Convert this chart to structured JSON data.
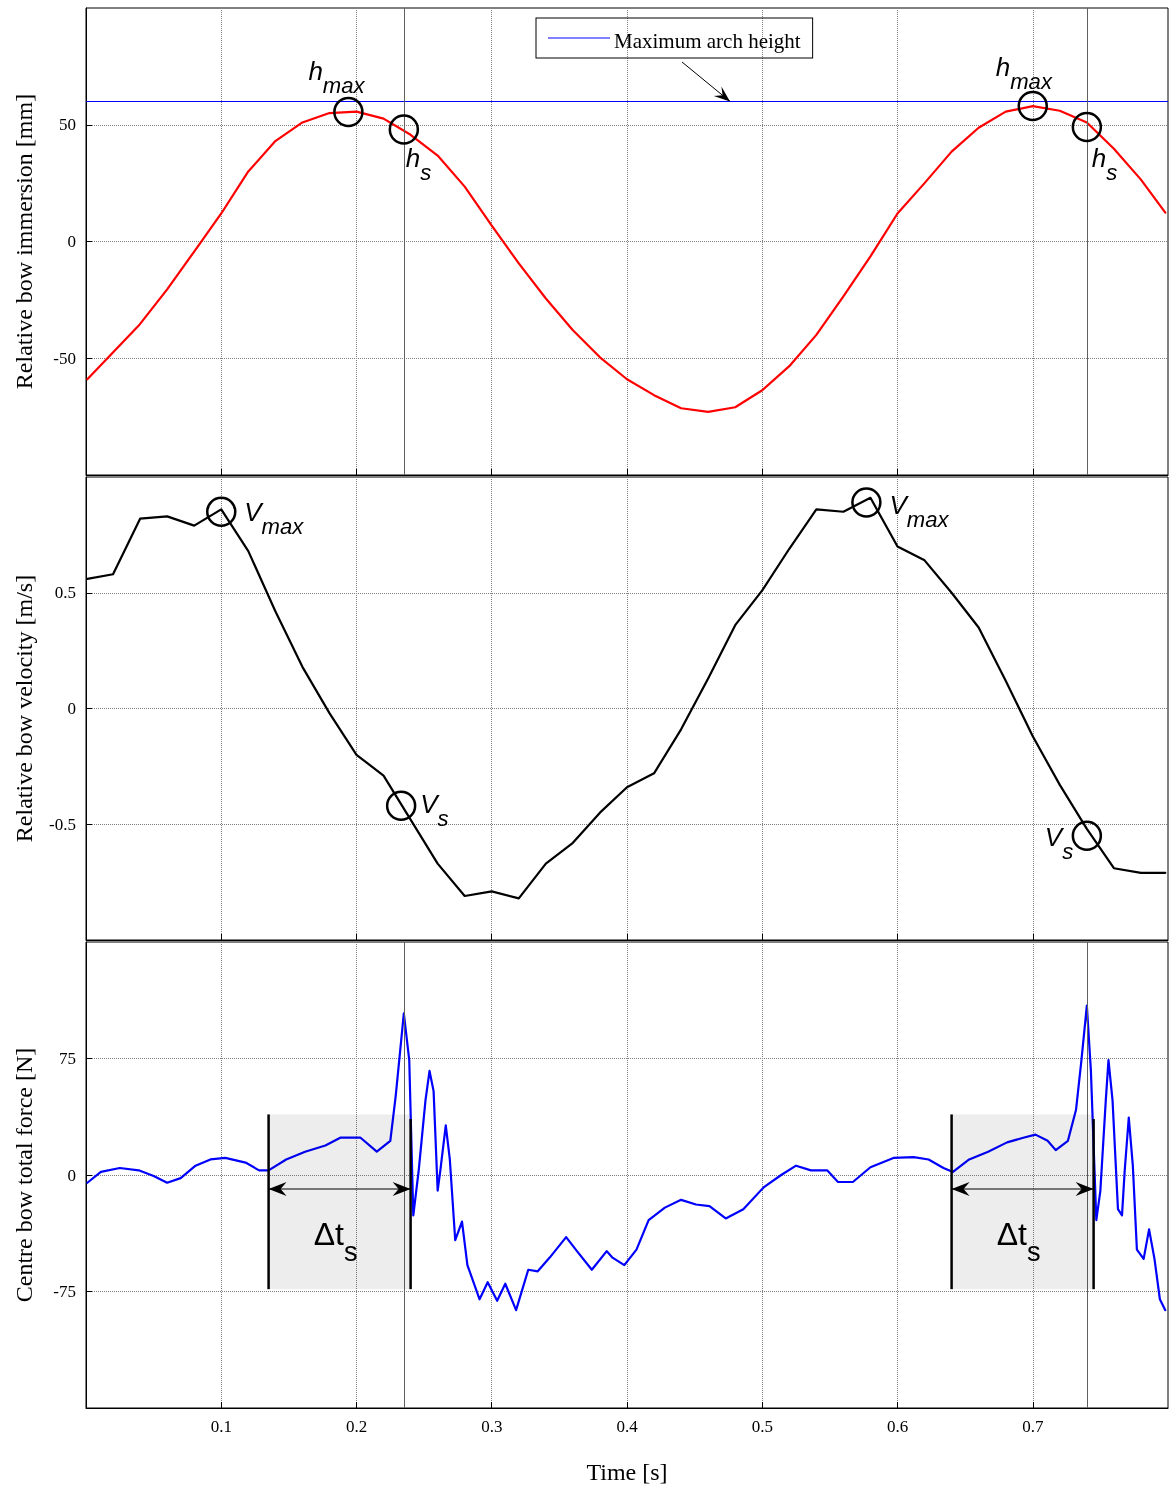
{
  "chart_data": [
    {
      "type": "line",
      "ylabel": "Relative bow immersion [mm]",
      "xlim": [
        0,
        0.8
      ],
      "xticks": [
        0.1,
        0.2,
        0.3,
        0.4,
        0.5,
        0.6,
        0.7
      ],
      "ylim": [
        -100,
        100
      ],
      "yticks": [
        -50,
        0,
        50
      ],
      "grid": true,
      "tick_labels": "y",
      "marker": "none",
      "x": [
        0.001,
        0.039,
        0.06,
        0.08,
        0.1,
        0.12,
        0.14,
        0.16,
        0.18,
        0.2,
        0.22,
        0.24,
        0.26,
        0.28,
        0.3,
        0.32,
        0.34,
        0.36,
        0.38,
        0.4,
        0.42,
        0.44,
        0.46,
        0.48,
        0.5,
        0.52,
        0.54,
        0.56,
        0.58,
        0.6,
        0.62,
        0.64,
        0.66,
        0.68,
        0.7,
        0.72,
        0.74,
        0.76,
        0.78,
        0.798
      ],
      "series": [
        {
          "color": "#ff0000",
          "values": [
            -59,
            -36,
            -20.5,
            -4.3,
            12,
            30,
            43,
            51,
            55,
            55.6,
            52.6,
            45.7,
            36.8,
            23.5,
            6.8,
            -9.4,
            -24.4,
            -38,
            -49.6,
            -59,
            -65.8,
            -71.4,
            -73,
            -71,
            -63.7,
            -53.4,
            -40,
            -23.5,
            -6.4,
            12,
            25,
            38.5,
            48.7,
            55.6,
            58,
            56,
            51,
            39.7,
            26.5,
            12.4
          ]
        }
      ],
      "ref_lines": [
        {
          "axis": "y",
          "value": 60,
          "label": "Maximum arch height",
          "color": "#0000ff"
        },
        {
          "axis": "x",
          "value": 0.235,
          "color": "#606060"
        },
        {
          "axis": "x",
          "value": 0.74,
          "color": "#606060"
        }
      ],
      "annotations": [
        {
          "text": "h$_{max}$",
          "x": 0.194,
          "y": 55.5
        },
        {
          "text": "h$_{s}$",
          "x": 0.235,
          "y": 48
        },
        {
          "text": "h$_{max}$",
          "x": 0.7,
          "y": 58
        },
        {
          "text": "h$_{s}$",
          "x": 0.74,
          "y": 49
        }
      ]
    },
    {
      "type": "line",
      "ylabel": "Relative bow velocity [m/s]",
      "xlim": [
        0,
        0.8
      ],
      "xticks": [
        0.1,
        0.2,
        0.3,
        0.4,
        0.5,
        0.6,
        0.7
      ],
      "ylim": [
        -1,
        1
      ],
      "yticks": [
        -0.5,
        0,
        0.5
      ],
      "grid": true,
      "tick_labels": "y",
      "marker": "none",
      "x": [
        0.001,
        0.02,
        0.04,
        0.06,
        0.08,
        0.1,
        0.12,
        0.14,
        0.16,
        0.18,
        0.2,
        0.22,
        0.24,
        0.26,
        0.28,
        0.3,
        0.32,
        0.34,
        0.36,
        0.38,
        0.4,
        0.42,
        0.44,
        0.46,
        0.48,
        0.5,
        0.52,
        0.54,
        0.56,
        0.58,
        0.6,
        0.62,
        0.64,
        0.66,
        0.68,
        0.7,
        0.72,
        0.74,
        0.76,
        0.78,
        0.798
      ],
      "series": [
        {
          "color": "#000000",
          "values": [
            0.56,
            0.58,
            0.82,
            0.83,
            0.79,
            0.86,
            0.68,
            0.42,
            0.18,
            -0.02,
            -0.2,
            -0.29,
            -0.48,
            -0.67,
            -0.81,
            -0.79,
            -0.82,
            -0.67,
            -0.58,
            -0.45,
            -0.34,
            -0.28,
            -0.09,
            0.13,
            0.36,
            0.51,
            0.69,
            0.86,
            0.85,
            0.91,
            0.7,
            0.64,
            0.5,
            0.35,
            0.12,
            -0.12,
            -0.33,
            -0.52,
            -0.69,
            -0.71,
            -0.71
          ]
        }
      ],
      "annotations": [
        {
          "text": "V$_{max}$",
          "x": 0.1,
          "y": 0.85
        },
        {
          "text": "V$_{s}$",
          "x": 0.233,
          "y": -0.42
        },
        {
          "text": "V$_{max}$",
          "x": 0.577,
          "y": 0.89
        },
        {
          "text": "V$_{s}$",
          "x": 0.74,
          "y": -0.55
        }
      ]
    },
    {
      "type": "line",
      "xlabel": "Time [s]",
      "ylabel": "Centre bow total force [N]",
      "xlim": [
        0,
        0.8
      ],
      "xticks": [
        0.1,
        0.2,
        0.3,
        0.4,
        0.5,
        0.6,
        0.7
      ],
      "ylim": [
        -150,
        150
      ],
      "yticks": [
        -75,
        0,
        75
      ],
      "grid": true,
      "marker": "none",
      "x": [
        0.001,
        0.011,
        0.025,
        0.039,
        0.05,
        0.06,
        0.07,
        0.081,
        0.092,
        0.103,
        0.118,
        0.128,
        0.135,
        0.148,
        0.162,
        0.177,
        0.188,
        0.203,
        0.215,
        0.225,
        0.229,
        0.235,
        0.239,
        0.242,
        0.246,
        0.251,
        0.254,
        0.257,
        0.26,
        0.262,
        0.266,
        0.269,
        0.273,
        0.278,
        0.282,
        0.291,
        0.297,
        0.304,
        0.31,
        0.318,
        0.327,
        0.334,
        0.343,
        0.355,
        0.363,
        0.374,
        0.385,
        0.389,
        0.398,
        0.407,
        0.416,
        0.428,
        0.44,
        0.451,
        0.461,
        0.473,
        0.486,
        0.501,
        0.514,
        0.525,
        0.536,
        0.548,
        0.556,
        0.567,
        0.58,
        0.597,
        0.612,
        0.623,
        0.634,
        0.641,
        0.653,
        0.667,
        0.681,
        0.693,
        0.702,
        0.711,
        0.717,
        0.726,
        0.732,
        0.736,
        0.74,
        0.743,
        0.747,
        0.75,
        0.754,
        0.756,
        0.759,
        0.763,
        0.766,
        0.768,
        0.771,
        0.774,
        0.777,
        0.782,
        0.786,
        0.79,
        0.794,
        0.798
      ],
      "series": [
        {
          "color": "#0000ff",
          "values": [
            -5,
            2,
            4.5,
            3,
            -0.6,
            -5,
            -2,
            6,
            10,
            11,
            8,
            3,
            3,
            10,
            15,
            19,
            24,
            24,
            15,
            22,
            51,
            104,
            74,
            -26,
            3,
            48,
            67,
            54,
            -10,
            3,
            32,
            10,
            -42,
            -30,
            -58,
            -80,
            -69,
            -81,
            -70,
            -87,
            -61,
            -62,
            -53,
            -40,
            -49,
            -61,
            -49,
            -53,
            -58,
            -48,
            -29,
            -21,
            -16,
            -19,
            -20,
            -28,
            -22,
            -8,
            0,
            6,
            3,
            3,
            -4.5,
            -4.5,
            5,
            11,
            11.5,
            10,
            4.5,
            2,
            10,
            15,
            21,
            24,
            26,
            22,
            16,
            22,
            42,
            74,
            109,
            67,
            -29,
            -10,
            48,
            74,
            48,
            -22,
            -26,
            3,
            37,
            6,
            -48,
            -54,
            -35,
            -54,
            -80,
            -87
          ]
        }
      ],
      "ref_lines": [
        {
          "axis": "x",
          "value": 0.235,
          "color": "#606060"
        },
        {
          "axis": "x",
          "value": 0.74,
          "color": "#606060"
        }
      ],
      "bands": [
        {
          "axis": "x",
          "from": 0.135,
          "to": 0.24,
          "label": "Δt$_{s}$",
          "color": "#000000"
        },
        {
          "axis": "x",
          "from": 0.64,
          "to": 0.745,
          "label": "Δt$_{s}$",
          "color": "#000000"
        }
      ]
    }
  ]
}
